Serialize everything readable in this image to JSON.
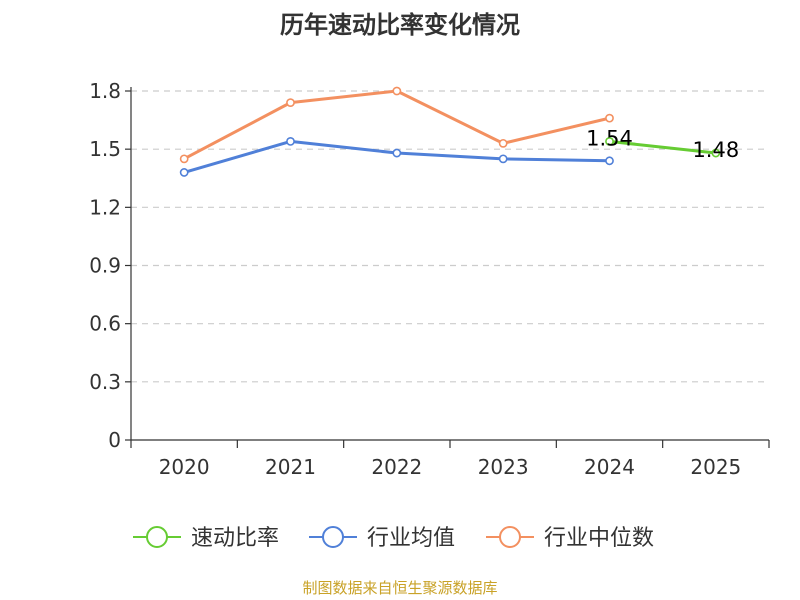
{
  "chart_data": {
    "type": "line",
    "title": "历年速动比率变化情况",
    "categories": [
      "2020",
      "2021",
      "2022",
      "2023",
      "2024",
      "2025"
    ],
    "y_ticks": [
      "0",
      "0.3",
      "0.6",
      "0.9",
      "1.2",
      "1.5",
      "1.8"
    ],
    "ylim": [
      0,
      1.8
    ],
    "grid": true,
    "legend_position": "bottom",
    "series": [
      {
        "name": "速动比率",
        "color": "#66cc33",
        "values": [
          null,
          null,
          null,
          null,
          1.54,
          1.48
        ],
        "labels": [
          "",
          "",
          "",
          "",
          "1.54",
          "1.48"
        ]
      },
      {
        "name": "行业均值",
        "color": "#5080d8",
        "values": [
          1.38,
          1.54,
          1.48,
          1.45,
          1.44,
          null
        ]
      },
      {
        "name": "行业中位数",
        "color": "#f39060",
        "values": [
          1.45,
          1.74,
          1.8,
          1.53,
          1.66,
          null
        ]
      }
    ],
    "source": "制图数据来自恒生聚源数据库"
  }
}
